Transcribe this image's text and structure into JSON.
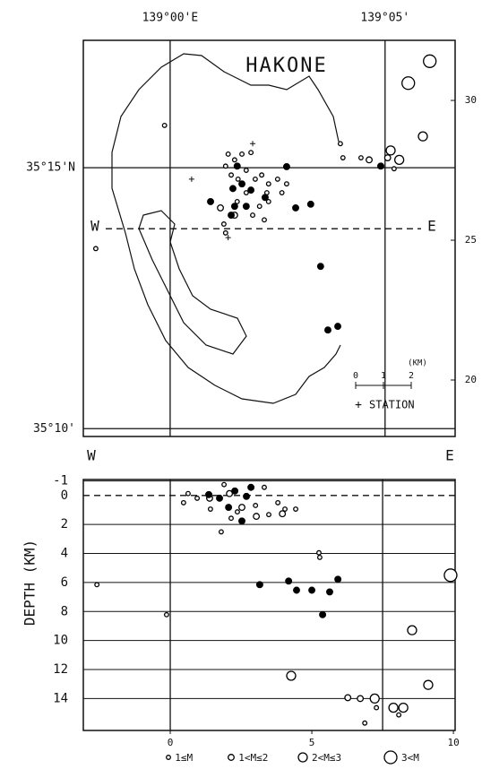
{
  "chart_data": [
    {
      "type": "scatter",
      "title": "HAKONE",
      "xlim": [
        -2.02,
        6.63
      ],
      "ylim": [
        9.85,
        17.44
      ],
      "y2lim": [
        17.98,
        32.15
      ],
      "xticks": [
        {
          "value": 0,
          "label": "139°00'E"
        },
        {
          "value": 5,
          "label": "139°05'"
        }
      ],
      "yticks": [
        {
          "value": 15,
          "label": "35°15'N"
        },
        {
          "value": 10,
          "label": "35°10'"
        }
      ],
      "y2ticks": [
        30,
        25,
        20
      ],
      "grid": true,
      "section_labels": [
        "W",
        "E"
      ],
      "section_y": 13.83,
      "scale_bar": {
        "ticks": [
          "0",
          "1",
          "2"
        ],
        "unit": "(KM)"
      },
      "stations": {
        "label": "STATION",
        "x": [
          1.92,
          0.5,
          1.35
        ],
        "y": [
          15.46,
          14.78,
          13.66
        ]
      },
      "series": [
        {
          "color": "#000",
          "filled": false,
          "x": [
            -0.13,
            -1.73,
            3.96,
            4.02,
            4.44,
            5.21,
            1.35,
            1.5,
            1.67,
            1.88,
            1.29,
            1.42,
            1.58,
            1.77,
            1.98,
            2.13,
            2.29,
            2.25,
            2.08,
            1.92,
            2.19,
            1.29,
            1.25,
            2.5,
            2.6,
            2.71,
            2.29,
            1.56,
            1.77
          ],
          "y": [
            15.81,
            13.45,
            15.46,
            15.19,
            15.19,
            14.98,
            15.26,
            15.15,
            15.26,
            15.29,
            15.03,
            14.86,
            14.78,
            14.95,
            14.78,
            14.86,
            14.69,
            14.52,
            14.26,
            14.09,
            14.0,
            13.75,
            13.92,
            14.78,
            14.52,
            14.69,
            14.35,
            14.35,
            14.52
          ]
        },
        {
          "color": "#000",
          "filled": false,
          "x": [
            4.63,
            5.06,
            1.5,
            1.17
          ],
          "y": [
            15.15,
            15.19,
            14.09,
            14.23
          ]
        },
        {
          "color": "#000",
          "filled": false,
          "x": [
            5.13,
            5.33,
            5.88
          ],
          "y": [
            15.33,
            15.15,
            15.6
          ]
        },
        {
          "color": "#000",
          "filled": false,
          "x": [
            6.04,
            5.54
          ],
          "y": [
            17.04,
            16.62
          ]
        },
        {
          "color": "#000",
          "filled": true,
          "x": [
            2.71,
            3.5,
            3.67,
            3.9,
            2.92,
            3.27,
            4.9,
            1.56,
            1.46,
            1.67,
            1.5,
            1.77,
            0.94,
            1.88,
            1.42,
            2.21
          ],
          "y": [
            15.02,
            13.11,
            11.89,
            11.96,
            14.23,
            14.3,
            15.03,
            15.03,
            14.6,
            14.69,
            14.26,
            14.26,
            14.35,
            14.57,
            14.09,
            14.43
          ]
        }
      ]
    },
    {
      "type": "scatter",
      "ylabel": "DEPTH (KM)",
      "xlim": [
        -3.07,
        10.06
      ],
      "ylim": [
        -1.1,
        16.2
      ],
      "y_inverted": true,
      "xticks": [
        0,
        5,
        10
      ],
      "yticks": [
        -1,
        0,
        2,
        4,
        6,
        8,
        10,
        12,
        14
      ],
      "vlines": [
        0,
        7.5
      ],
      "dashed_y": 0,
      "grid": true,
      "series": [
        {
          "name": "1≤M",
          "color": "#000",
          "filled": false,
          "x": [
            -2.59,
            -0.13,
            1.8,
            4.05,
            4.43,
            5.25,
            5.28,
            6.87,
            7.28,
            8.07,
            0.47,
            0.63,
            0.95,
            1.42,
            1.9,
            2.37,
            3.01,
            3.32,
            3.48,
            3.8,
            2.15
          ],
          "y": [
            6.15,
            8.22,
            2.51,
            0.94,
            0.94,
            3.95,
            4.27,
            15.69,
            14.63,
            15.13,
            0.5,
            -0.13,
            0.19,
            0.94,
            -0.75,
            1.13,
            0.69,
            -0.56,
            1.32,
            0.5,
            1.57
          ]
        },
        {
          "name": "1<M≤2",
          "color": "#000",
          "filled": false,
          "x": [
            1.39,
            2.09,
            2.53,
            3.04,
            3.96,
            6.27,
            6.71
          ],
          "y": [
            0.19,
            -0.13,
            0.82,
            1.44,
            1.26,
            13.94,
            14.0
          ]
        },
        {
          "name": "2<M≤3",
          "color": "#000",
          "filled": false,
          "x": [
            4.27,
            7.22,
            7.88,
            8.23,
            8.54,
            9.11
          ],
          "y": [
            12.43,
            14.0,
            14.63,
            14.63,
            9.29,
            13.06
          ]
        },
        {
          "name": "3<M",
          "color": "#000",
          "filled": false,
          "x": [
            9.9
          ],
          "y": [
            5.5
          ]
        },
        {
          "color": "#000",
          "filled": true,
          "x": [
            1.36,
            3.16,
            4.18,
            4.46,
            5.0,
            5.63,
            5.92,
            5.38,
            1.74,
            2.28,
            2.69,
            2.06,
            2.53,
            2.85
          ],
          "y": [
            -0.06,
            6.15,
            5.9,
            6.53,
            6.53,
            6.65,
            5.78,
            8.22,
            0.19,
            -0.31,
            0.06,
            0.82,
            1.76,
            -0.56
          ]
        }
      ]
    }
  ]
}
